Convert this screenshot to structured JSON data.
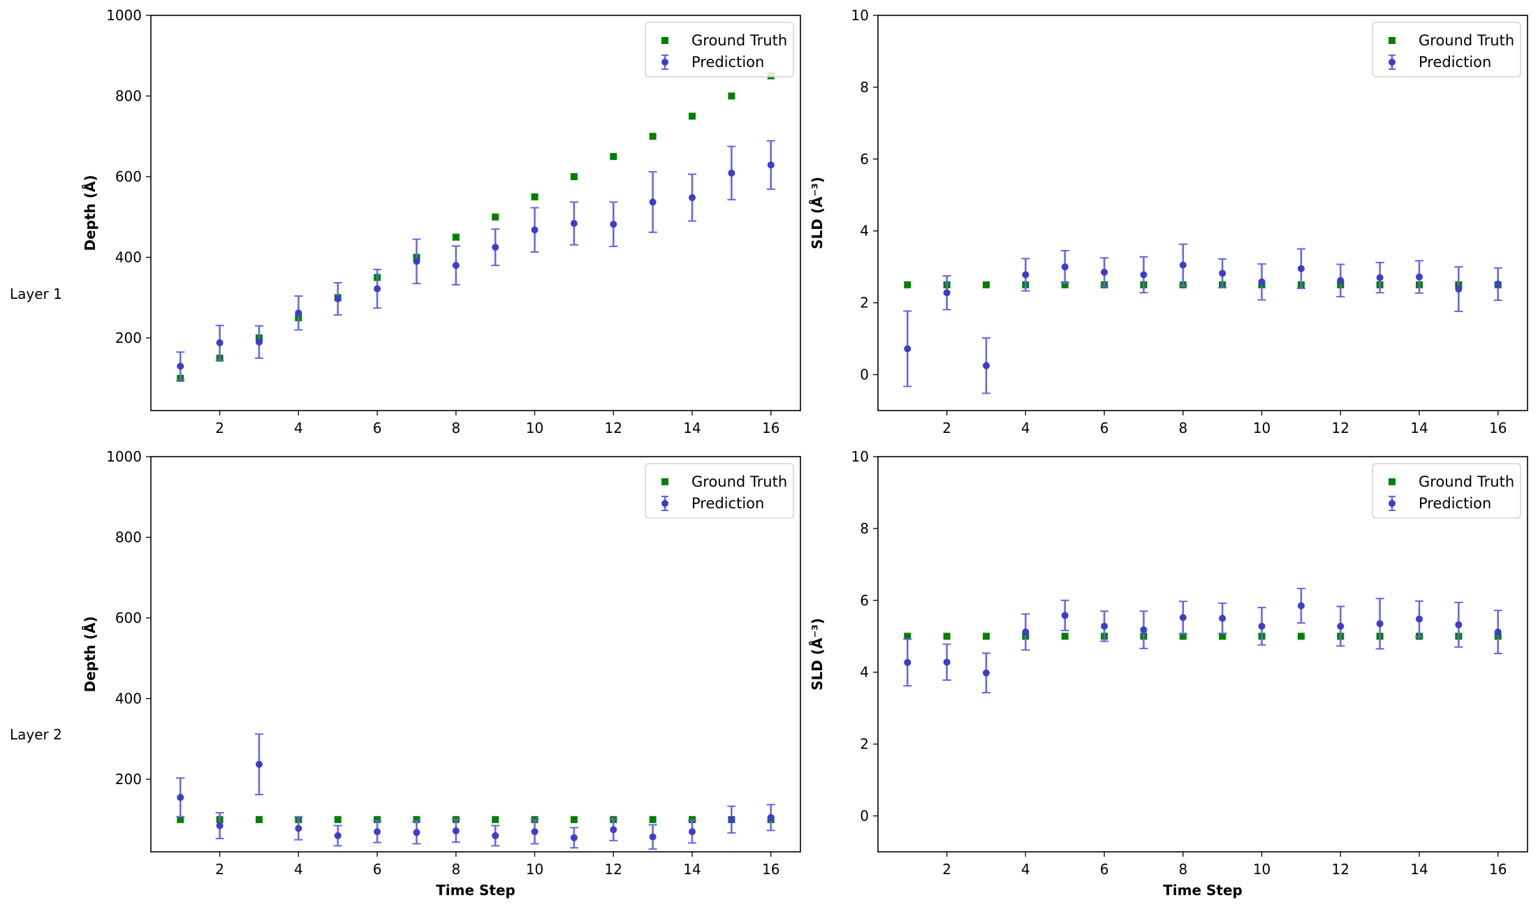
{
  "colors": {
    "ground_truth": "#008000",
    "prediction_marker": "#3d3dcc",
    "prediction_errorbar": "#6464e8"
  },
  "row_labels": [
    "Layer 1",
    "Layer 2"
  ],
  "legend": {
    "ground_truth": "Ground Truth",
    "prediction": "Prediction",
    "placement": "upper right"
  },
  "chart_data": [
    {
      "type": "scatter",
      "ylabel": "Depth (Å)",
      "xlabel": "",
      "xlim": [
        0.25,
        16.75
      ],
      "ylim": [
        20,
        1000
      ],
      "xticks": [
        2,
        4,
        6,
        8,
        10,
        12,
        14,
        16
      ],
      "yticks": [
        200,
        400,
        600,
        800,
        1000
      ],
      "grid": false,
      "series": [
        {
          "name": "Ground Truth",
          "x": [
            1,
            2,
            3,
            4,
            5,
            6,
            7,
            8,
            9,
            10,
            11,
            12,
            13,
            14,
            15,
            16
          ],
          "y": [
            100,
            150,
            200,
            250,
            300,
            350,
            400,
            450,
            500,
            550,
            600,
            650,
            700,
            750,
            800,
            850
          ]
        },
        {
          "name": "Prediction",
          "x": [
            1,
            2,
            3,
            4,
            5,
            6,
            7,
            8,
            9,
            10,
            11,
            12,
            13,
            14,
            15,
            16
          ],
          "y": [
            130,
            188,
            190,
            262,
            297,
            322,
            390,
            380,
            425,
            468,
            484,
            482,
            537,
            548,
            609,
            629
          ],
          "error": [
            35,
            43,
            40,
            42,
            40,
            48,
            55,
            48,
            45,
            55,
            53,
            55,
            75,
            58,
            66,
            60
          ]
        }
      ]
    },
    {
      "type": "scatter",
      "ylabel": "SLD (Å⁻³)",
      "xlabel": "",
      "xlim": [
        0.25,
        16.75
      ],
      "ylim": [
        -1,
        10
      ],
      "xticks": [
        2,
        4,
        6,
        8,
        10,
        12,
        14,
        16
      ],
      "yticks": [
        0,
        2,
        4,
        6,
        8,
        10
      ],
      "grid": false,
      "series": [
        {
          "name": "Ground Truth",
          "x": [
            1,
            2,
            3,
            4,
            5,
            6,
            7,
            8,
            9,
            10,
            11,
            12,
            13,
            14,
            15,
            16
          ],
          "y": [
            2.5,
            2.5,
            2.5,
            2.5,
            2.5,
            2.5,
            2.5,
            2.5,
            2.5,
            2.5,
            2.5,
            2.5,
            2.5,
            2.5,
            2.5,
            2.5
          ]
        },
        {
          "name": "Prediction",
          "x": [
            1,
            2,
            3,
            4,
            5,
            6,
            7,
            8,
            9,
            10,
            11,
            12,
            13,
            14,
            15,
            16
          ],
          "y": [
            0.72,
            2.28,
            0.25,
            2.78,
            3.0,
            2.85,
            2.78,
            3.05,
            2.82,
            2.58,
            2.95,
            2.62,
            2.7,
            2.72,
            2.38,
            2.52
          ],
          "error": [
            1.05,
            0.47,
            0.77,
            0.45,
            0.45,
            0.4,
            0.5,
            0.58,
            0.4,
            0.5,
            0.55,
            0.45,
            0.42,
            0.45,
            0.62,
            0.45
          ]
        }
      ]
    },
    {
      "type": "scatter",
      "ylabel": "Depth (Å)",
      "xlabel": "Time Step",
      "xlim": [
        0.25,
        16.75
      ],
      "ylim": [
        20,
        1000
      ],
      "xticks": [
        2,
        4,
        6,
        8,
        10,
        12,
        14,
        16
      ],
      "yticks": [
        200,
        400,
        600,
        800,
        1000
      ],
      "grid": false,
      "series": [
        {
          "name": "Ground Truth",
          "x": [
            1,
            2,
            3,
            4,
            5,
            6,
            7,
            8,
            9,
            10,
            11,
            12,
            13,
            14,
            15,
            16
          ],
          "y": [
            100,
            100,
            100,
            100,
            100,
            100,
            100,
            100,
            100,
            100,
            100,
            100,
            100,
            100,
            100,
            100
          ]
        },
        {
          "name": "Prediction",
          "x": [
            1,
            2,
            3,
            4,
            5,
            6,
            7,
            8,
            9,
            10,
            11,
            12,
            13,
            14,
            15,
            16
          ],
          "y": [
            155,
            85,
            237,
            78,
            60,
            70,
            68,
            72,
            60,
            70,
            55,
            75,
            57,
            70,
            100,
            105
          ],
          "error": [
            48,
            32,
            75,
            28,
            25,
            27,
            28,
            28,
            25,
            30,
            25,
            27,
            30,
            28,
            33,
            32
          ]
        }
      ]
    },
    {
      "type": "scatter",
      "ylabel": "SLD (Å⁻³)",
      "xlabel": "Time Step",
      "xlim": [
        0.25,
        16.75
      ],
      "ylim": [
        -1,
        10
      ],
      "xticks": [
        2,
        4,
        6,
        8,
        10,
        12,
        14,
        16
      ],
      "yticks": [
        0,
        2,
        4,
        6,
        8,
        10
      ],
      "grid": false,
      "series": [
        {
          "name": "Ground Truth",
          "x": [
            1,
            2,
            3,
            4,
            5,
            6,
            7,
            8,
            9,
            10,
            11,
            12,
            13,
            14,
            15,
            16
          ],
          "y": [
            5,
            5,
            5,
            5,
            5,
            5,
            5,
            5,
            5,
            5,
            5,
            5,
            5,
            5,
            5,
            5
          ]
        },
        {
          "name": "Prediction",
          "x": [
            1,
            2,
            3,
            4,
            5,
            6,
            7,
            8,
            9,
            10,
            11,
            12,
            13,
            14,
            15,
            16
          ],
          "y": [
            4.27,
            4.28,
            3.98,
            5.12,
            5.58,
            5.28,
            5.18,
            5.52,
            5.5,
            5.28,
            5.85,
            5.28,
            5.35,
            5.48,
            5.32,
            5.12
          ],
          "error": [
            0.65,
            0.5,
            0.55,
            0.5,
            0.42,
            0.42,
            0.52,
            0.45,
            0.42,
            0.52,
            0.48,
            0.55,
            0.7,
            0.5,
            0.62,
            0.6
          ]
        }
      ]
    }
  ]
}
